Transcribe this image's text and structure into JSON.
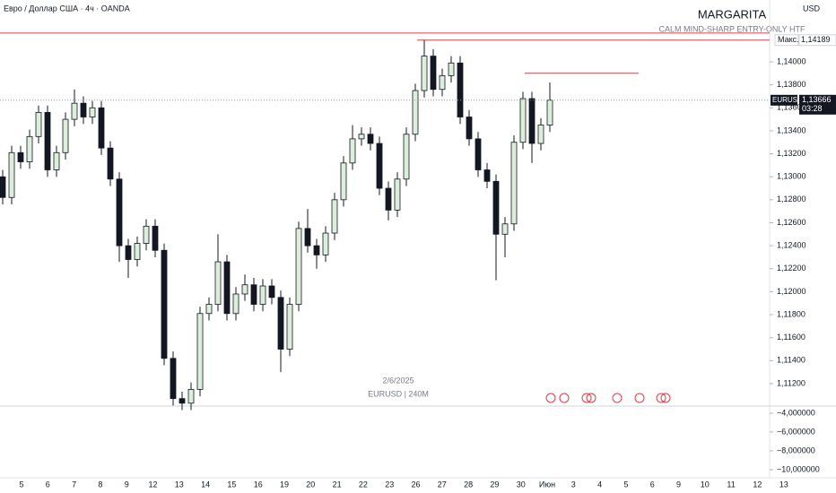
{
  "chart_data": {
    "type": "candlestick",
    "title": "Евро / Доллар США · 4ч · OANDA",
    "watermark": "MARGARITA",
    "subtitle": "CALM MIND-SHARP ENTRY-ONLY HTF",
    "currency": "USD",
    "center_date": "2/6/2025",
    "center_symbol": "EURUSD | 240M",
    "up_color": "#dcefdc",
    "down_color": "#131722",
    "x_labels": [
      "5",
      "6",
      "7",
      "8",
      "9",
      "12",
      "13",
      "14",
      "15",
      "16",
      "19",
      "20",
      "21",
      "22",
      "23",
      "26",
      "27",
      "28",
      "29",
      "30",
      "Июн",
      "3",
      "4",
      "5",
      "6",
      "9",
      "10",
      "11",
      "12",
      "13"
    ],
    "open": [
      1.13,
      1.1282,
      1.1321,
      1.1313,
      1.1335,
      1.1356,
      1.1306,
      1.1321,
      1.135,
      1.1364,
      1.1352,
      1.136,
      1.1325,
      1.1298,
      1.124,
      1.1228,
      1.1242,
      1.1257,
      1.1236,
      1.1142,
      1.1107,
      1.1103,
      1.1115,
      1.1181,
      1.1189,
      1.1226,
      1.1181,
      1.1198,
      1.1206,
      1.1189,
      1.1205,
      1.1195,
      1.115,
      1.1189,
      1.1255,
      1.124,
      1.1232,
      1.1251,
      1.128,
      1.1312,
      1.1333,
      1.1337,
      1.1329,
      1.129,
      1.1271,
      1.1298,
      1.1337,
      1.1375,
      1.1405,
      1.1376,
      1.1388,
      1.1399,
      1.1352,
      1.1333,
      1.1306,
      1.1296,
      1.125,
      1.1259,
      1.133,
      1.1368,
      1.1329,
      1.1345
    ],
    "high": [
      1.1306,
      1.1327,
      1.1327,
      1.1341,
      1.1362,
      1.1362,
      1.1327,
      1.1356,
      1.1376,
      1.137,
      1.1366,
      1.1366,
      1.1331,
      1.1304,
      1.1246,
      1.1248,
      1.1263,
      1.1263,
      1.1242,
      1.1148,
      1.1113,
      1.1121,
      1.1187,
      1.1195,
      1.125,
      1.1232,
      1.1204,
      1.1215,
      1.1212,
      1.1211,
      1.1211,
      1.1201,
      1.1195,
      1.1261,
      1.1272,
      1.1246,
      1.1257,
      1.1286,
      1.1318,
      1.1345,
      1.1343,
      1.1343,
      1.1335,
      1.1296,
      1.1304,
      1.1343,
      1.1381,
      1.14189,
      1.1411,
      1.1394,
      1.1405,
      1.1405,
      1.1358,
      1.1339,
      1.1312,
      1.1302,
      1.1265,
      1.1336,
      1.1374,
      1.1374,
      1.1351,
      1.1382
    ],
    "low": [
      1.1276,
      1.1276,
      1.1307,
      1.1307,
      1.1329,
      1.13,
      1.13,
      1.1315,
      1.1344,
      1.1346,
      1.1346,
      1.1319,
      1.1292,
      1.1226,
      1.1212,
      1.1222,
      1.1236,
      1.123,
      1.1136,
      1.1101,
      1.1097,
      1.1097,
      1.1109,
      1.1175,
      1.1183,
      1.1175,
      1.1175,
      1.1192,
      1.1183,
      1.1183,
      1.1189,
      1.113,
      1.1144,
      1.1183,
      1.1234,
      1.122,
      1.1226,
      1.1245,
      1.1274,
      1.1306,
      1.1327,
      1.1323,
      1.1284,
      1.1262,
      1.1265,
      1.1292,
      1.1331,
      1.1369,
      1.137,
      1.137,
      1.1382,
      1.1346,
      1.1327,
      1.13,
      1.129,
      1.121,
      1.123,
      1.1253,
      1.1324,
      1.1312,
      1.1323,
      1.1339
    ],
    "close": [
      1.1282,
      1.1321,
      1.1313,
      1.1335,
      1.1356,
      1.1306,
      1.1321,
      1.135,
      1.1364,
      1.1352,
      1.136,
      1.1325,
      1.1298,
      1.124,
      1.1228,
      1.1242,
      1.1257,
      1.1236,
      1.1142,
      1.1107,
      1.1103,
      1.1115,
      1.1181,
      1.1189,
      1.1226,
      1.1181,
      1.1198,
      1.1206,
      1.1189,
      1.1205,
      1.1195,
      1.115,
      1.1189,
      1.1255,
      1.124,
      1.1232,
      1.1251,
      1.128,
      1.1312,
      1.1333,
      1.1337,
      1.1329,
      1.129,
      1.1271,
      1.1298,
      1.1337,
      1.1375,
      1.1405,
      1.1376,
      1.1388,
      1.1399,
      1.1352,
      1.1333,
      1.1306,
      1.1296,
      1.125,
      1.1259,
      1.133,
      1.1368,
      1.1329,
      1.1345,
      1.13666
    ],
    "ylim": [
      1.11005,
      1.14538
    ],
    "yticks": [
      {
        "value": 1.112,
        "label": "1,11200"
      },
      {
        "value": 1.114,
        "label": "1,11400"
      },
      {
        "value": 1.116,
        "label": "1,11600"
      },
      {
        "value": 1.118,
        "label": "1,11800"
      },
      {
        "value": 1.12,
        "label": "1,12000"
      },
      {
        "value": 1.122,
        "label": "1,12200"
      },
      {
        "value": 1.124,
        "label": "1,12400"
      },
      {
        "value": 1.126,
        "label": "1,12600"
      },
      {
        "value": 1.128,
        "label": "1,12800"
      },
      {
        "value": 1.13,
        "label": "1,13000"
      },
      {
        "value": 1.132,
        "label": "1,13200"
      },
      {
        "value": 1.134,
        "label": "1,13400"
      },
      {
        "value": 1.136,
        "label": "1,13600"
      },
      {
        "value": 1.138,
        "label": "1,13800"
      },
      {
        "value": 1.14,
        "label": "1,14000"
      }
    ],
    "y2lim": [
      -10.86,
      -3.24
    ],
    "y2ticks": [
      {
        "value": -4,
        "label": "−4,000000"
      },
      {
        "value": -6,
        "label": "−6,000000"
      },
      {
        "value": -8,
        "label": "−8,000000"
      },
      {
        "value": -10,
        "label": "−10,000000"
      }
    ],
    "levels": [
      {
        "value": 1.1425,
        "color": "#f23645"
      },
      {
        "value": 1.139,
        "color": "#f23645"
      }
    ],
    "high_mark": {
      "value": 1.14189,
      "label": "1,14189",
      "tag": "Макс.",
      "color": "#f23645"
    },
    "last_price": {
      "value": 1.13666,
      "label": "1,13666",
      "symbol": "EURUSD",
      "countdown": "03:28",
      "color": "#131722"
    }
  }
}
